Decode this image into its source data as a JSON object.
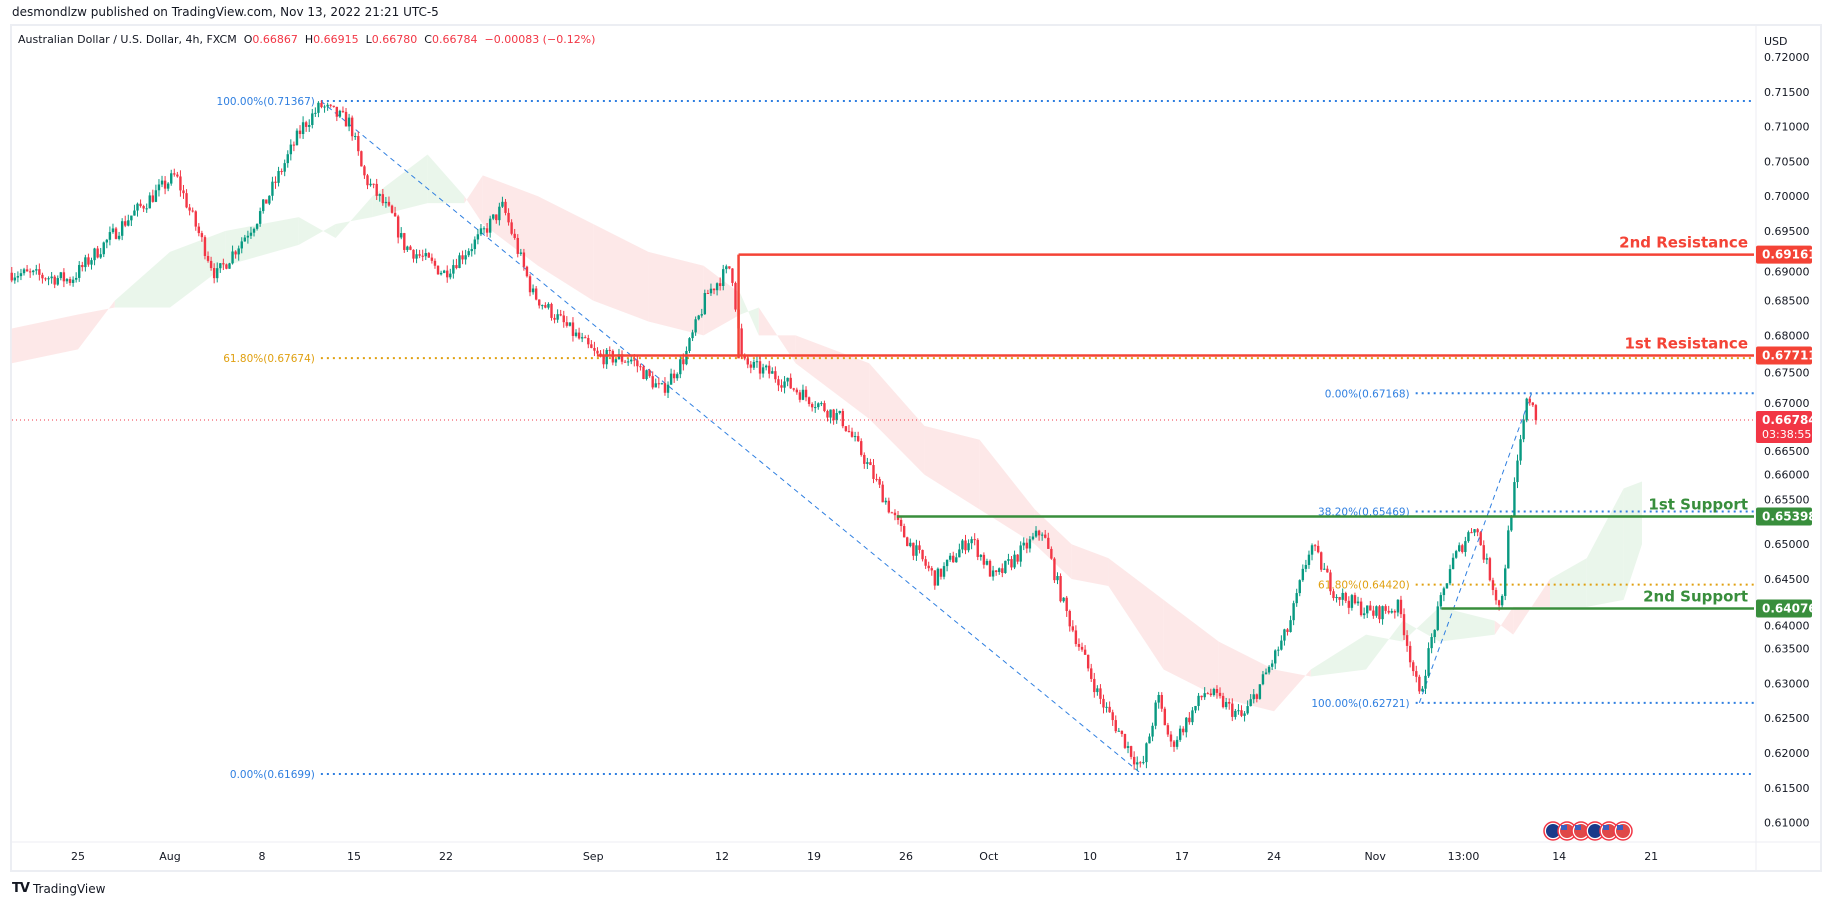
{
  "header": {
    "published": "desmondlzw published on TradingView.com, Nov 13, 2022 21:21 UTC-5",
    "symbol": "Australian Dollar / U.S. Dollar, 4h, FXCM",
    "o_label": "O",
    "o": "0.66867",
    "h_label": "H",
    "h": "0.66915",
    "l_label": "L",
    "l": "0.66780",
    "c_label": "C",
    "c": "0.66784",
    "change": "−0.00083 (−0.12%)"
  },
  "footer": {
    "brand": "TradingView"
  },
  "colors": {
    "up": "#089981",
    "down": "#f23645",
    "fib": "#2f7fe0",
    "fib_golden": "#e0a010",
    "resistance": "#f44336",
    "support": "#388e3c",
    "cloud_up": "#e8f5e9",
    "cloud_down": "#fde5e5"
  },
  "chart_data": {
    "type": "candlestick",
    "title": "Australian Dollar / U.S. Dollar, 4h, FXCM",
    "currency": "USD",
    "ylim": [
      0.6075,
      0.7225
    ],
    "y_ticks": [
      "0.72000",
      "0.71500",
      "0.71000",
      "0.70500",
      "0.70000",
      "0.69500",
      "0.69000",
      "0.68500",
      "0.68000",
      "0.67500",
      "0.67000",
      "0.66500",
      "0.66000",
      "0.65500",
      "0.65000",
      "0.64500",
      "0.64000",
      "0.63500",
      "0.63000",
      "0.62500",
      "0.62000",
      "0.61500",
      "0.61000"
    ],
    "x_ticks": [
      {
        "label": "25",
        "day": 0
      },
      {
        "label": "Aug",
        "day": 5
      },
      {
        "label": "8",
        "day": 10
      },
      {
        "label": "15",
        "day": 15
      },
      {
        "label": "22",
        "day": 20
      },
      {
        "label": "Sep",
        "day": 28
      },
      {
        "label": "12",
        "day": 35
      },
      {
        "label": "19",
        "day": 40
      },
      {
        "label": "26",
        "day": 45
      },
      {
        "label": "Oct",
        "day": 49.5
      },
      {
        "label": "10",
        "day": 55
      },
      {
        "label": "17",
        "day": 60
      },
      {
        "label": "24",
        "day": 65
      },
      {
        "label": "Nov",
        "day": 70.5
      },
      {
        "label": "13:00",
        "day": 75.3
      },
      {
        "label": "14",
        "day": 80.5
      },
      {
        "label": "21",
        "day": 85.5
      }
    ],
    "x_unit": "trading days since Jul 25, 2022",
    "price_path": [
      [
        -3.6,
        0.689
      ],
      [
        -0.4,
        0.688
      ],
      [
        2.8,
        0.697
      ],
      [
        5.3,
        0.703
      ],
      [
        7.5,
        0.6885
      ],
      [
        9.8,
        0.697
      ],
      [
        12.2,
        0.71
      ],
      [
        13.2,
        0.713
      ],
      [
        14.8,
        0.7105
      ],
      [
        15.5,
        0.703
      ],
      [
        17.1,
        0.697
      ],
      [
        17.7,
        0.693
      ],
      [
        19.9,
        0.689
      ],
      [
        21.8,
        0.694
      ],
      [
        23.1,
        0.6985
      ],
      [
        24.7,
        0.686
      ],
      [
        28.2,
        0.677
      ],
      [
        30.1,
        0.6765
      ],
      [
        31.7,
        0.672
      ],
      [
        33.0,
        0.677
      ],
      [
        34.2,
        0.686
      ],
      [
        35.5,
        0.69
      ],
      [
        36.1,
        0.676
      ],
      [
        37.7,
        0.6745
      ],
      [
        39.7,
        0.671
      ],
      [
        41.5,
        0.668
      ],
      [
        42.8,
        0.662
      ],
      [
        44.7,
        0.652
      ],
      [
        46.6,
        0.645
      ],
      [
        48.5,
        0.651
      ],
      [
        49.8,
        0.645
      ],
      [
        52.4,
        0.652
      ],
      [
        53.6,
        0.641
      ],
      [
        55.5,
        0.628
      ],
      [
        57.8,
        0.6175
      ],
      [
        58.7,
        0.628
      ],
      [
        59.4,
        0.621
      ],
      [
        61.3,
        0.629
      ],
      [
        63.3,
        0.625
      ],
      [
        64.5,
        0.631
      ],
      [
        65.8,
        0.638
      ],
      [
        67.0,
        0.65
      ],
      [
        68.3,
        0.643
      ],
      [
        70.3,
        0.64
      ],
      [
        71.8,
        0.641
      ],
      [
        72.9,
        0.628
      ],
      [
        73.7,
        0.638
      ],
      [
        74.6,
        0.647
      ],
      [
        75.9,
        0.653
      ],
      [
        77.3,
        0.6405
      ],
      [
        77.8,
        0.653
      ],
      [
        78.7,
        0.67
      ],
      [
        79.0,
        0.6712
      ],
      [
        79.3,
        0.6678
      ]
    ],
    "last_price": 0.66784,
    "last_price_label": "0.66784",
    "countdown": "03:38:55",
    "ichimoku_cloud": [
      [
        -3.6,
        0.676,
        0.681
      ],
      [
        0,
        0.678,
        0.683
      ],
      [
        2,
        0.685,
        0.684
      ],
      [
        5,
        0.692,
        0.684
      ],
      [
        8,
        0.695,
        0.69
      ],
      [
        12,
        0.697,
        0.693
      ],
      [
        14,
        0.694,
        0.696
      ],
      [
        16,
        0.7,
        0.697
      ],
      [
        19,
        0.706,
        0.699
      ],
      [
        21,
        0.7,
        0.699
      ],
      [
        22,
        0.696,
        0.703
      ],
      [
        25,
        0.69,
        0.7
      ],
      [
        28,
        0.685,
        0.696
      ],
      [
        31,
        0.682,
        0.692
      ],
      [
        34,
        0.68,
        0.69
      ],
      [
        36,
        0.683,
        0.686
      ],
      [
        37,
        0.684,
        0.68
      ],
      [
        39,
        0.676,
        0.68
      ],
      [
        43,
        0.668,
        0.676
      ],
      [
        46,
        0.66,
        0.667
      ],
      [
        49,
        0.655,
        0.665
      ],
      [
        52,
        0.65,
        0.655
      ],
      [
        54,
        0.645,
        0.65
      ],
      [
        56,
        0.644,
        0.648
      ],
      [
        59,
        0.632,
        0.642
      ],
      [
        62,
        0.628,
        0.636
      ],
      [
        65,
        0.626,
        0.632
      ],
      [
        67,
        0.632,
        0.631
      ],
      [
        70,
        0.637,
        0.632
      ],
      [
        72,
        0.636,
        0.639
      ],
      [
        74,
        0.641,
        0.636
      ],
      [
        77,
        0.639,
        0.637
      ],
      [
        78,
        0.637,
        0.641
      ],
      [
        80,
        0.645,
        0.641
      ],
      [
        82,
        0.648,
        0.641
      ],
      [
        84,
        0.658,
        0.642
      ],
      [
        85,
        0.659,
        0.65
      ]
    ],
    "fib_retracements": [
      {
        "from": [
          13.2,
          0.71367
        ],
        "to": [
          57.8,
          0.61699
        ],
        "start_day": 13.2,
        "levels": [
          {
            "label": "100.00%(0.71367)",
            "price": 0.71367,
            "golden": false
          },
          {
            "label": "61.80%(0.67674)",
            "price": 0.67674,
            "golden": true
          },
          {
            "label": "0.00%(0.61699)",
            "price": 0.61699,
            "golden": false
          }
        ]
      },
      {
        "from": [
          72.9,
          0.62721
        ],
        "to": [
          79.0,
          0.67168
        ],
        "start_day": 72.7,
        "levels": [
          {
            "label": "0.00%(0.67168)",
            "price": 0.67168,
            "golden": false
          },
          {
            "label": "38.20%(0.65469)",
            "price": 0.65469,
            "golden": false
          },
          {
            "label": "61.80%(0.64420)",
            "price": 0.6442,
            "golden": true
          },
          {
            "label": "100.00%(0.62721)",
            "price": 0.62721,
            "golden": false
          }
        ]
      }
    ],
    "levels": [
      {
        "name": "2nd Resistance",
        "price": 0.69161,
        "price_label": "0.69161",
        "kind": "resistance",
        "start_day": 35.9,
        "drop_to": 0.6767
      },
      {
        "name": "1st Resistance",
        "price": 0.67711,
        "price_label": "0.67711",
        "kind": "resistance",
        "start_day": 28.2
      },
      {
        "name": "1st Support",
        "price": 0.65398,
        "price_label": "0.65398",
        "kind": "support",
        "start_day": 44.5
      },
      {
        "name": "2nd Support",
        "price": 0.64076,
        "price_label": "0.64076",
        "kind": "support",
        "start_day": 74.1
      }
    ],
    "events": [
      "AUD",
      "USD",
      "USD",
      "AUD",
      "USD",
      "USD"
    ]
  }
}
